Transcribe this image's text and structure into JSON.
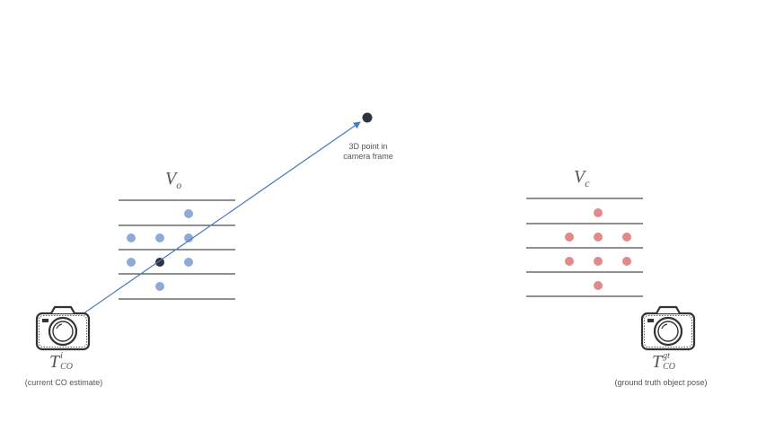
{
  "colors": {
    "background": "#ffffff",
    "grid_line": "#222222",
    "point_blue": "#8eaadb",
    "point_red": "#e08a8a",
    "point_dark": "#2c3444",
    "ray": "#4a78bf",
    "text": "#555555"
  },
  "left_grid": {
    "label_main": "V",
    "label_sub": "o",
    "points_blue": [
      [
        1,
        0
      ],
      [
        -1,
        1
      ],
      [
        0,
        1
      ],
      [
        1,
        1
      ],
      [
        -1,
        2
      ],
      [
        1,
        2
      ],
      [
        0,
        3
      ]
    ],
    "point_highlight": [
      0,
      2
    ]
  },
  "right_grid": {
    "label_main": "V",
    "label_sub": "c",
    "points_red": [
      [
        1,
        0
      ],
      [
        0,
        1
      ],
      [
        1,
        1
      ],
      [
        2,
        1
      ],
      [
        0,
        2
      ],
      [
        1,
        2
      ],
      [
        2,
        2
      ],
      [
        1,
        3
      ]
    ]
  },
  "target_point": {
    "caption_line1": "3D point in",
    "caption_line2": "camera frame"
  },
  "left_camera": {
    "icon": "camera-icon",
    "symbol": "T",
    "symbol_sub": "CO",
    "symbol_sup": "i",
    "caption": "(current CO estimate)"
  },
  "right_camera": {
    "icon": "camera-icon",
    "symbol": "T",
    "symbol_sub": "CO",
    "symbol_sup": "gt",
    "caption": "(ground truth object pose)"
  }
}
